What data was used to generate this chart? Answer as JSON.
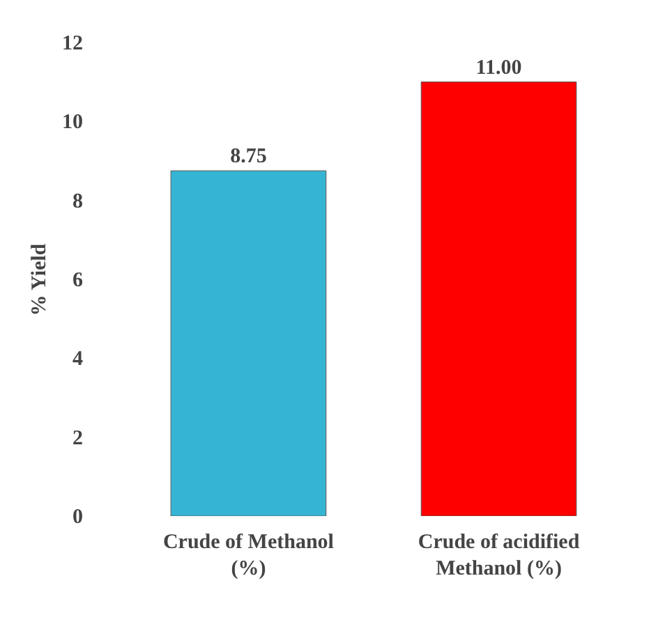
{
  "chart_data": {
    "type": "bar",
    "ylabel": "% Yield",
    "categories": [
      "Crude of Methanol\n(%)",
      "Crude of acidified\nMethanol (%)"
    ],
    "values": [
      8.75,
      11.0
    ],
    "colors": [
      "#35b4d4",
      "#ff0000"
    ],
    "value_labels": [
      "8.75",
      "11.00"
    ],
    "ylim": [
      0,
      12
    ],
    "yticks": [
      0,
      2,
      4,
      6,
      8,
      10,
      12
    ],
    "grid": false
  }
}
